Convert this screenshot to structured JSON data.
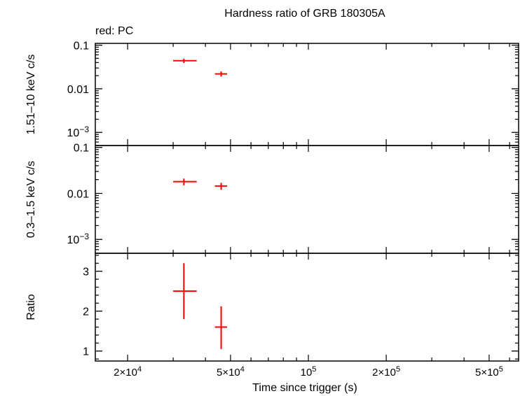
{
  "chart_data": {
    "type": "scatter",
    "title": "Hardness ratio of GRB 180305A",
    "legend_note": "red: PC",
    "xlabel": "Time since trigger (s)",
    "x_scale": "log",
    "xlim": [
      15000,
      650000
    ],
    "x_ticks": [
      {
        "value": 20000,
        "mant": "2×10",
        "exp": "4"
      },
      {
        "value": 50000,
        "mant": "5×10",
        "exp": "4"
      },
      {
        "value": 100000,
        "mant": "10",
        "exp": "5"
      },
      {
        "value": 200000,
        "mant": "2×10",
        "exp": "5"
      },
      {
        "value": 500000,
        "mant": "5×10",
        "exp": "5"
      }
    ],
    "series_color": "#ff0000",
    "panels": [
      {
        "id": "hard",
        "ylabel": "1.51–10 keV c/s",
        "y_scale": "log",
        "ylim": [
          0.0005,
          0.11
        ],
        "y_ticks": [
          {
            "value": 0.1,
            "label": "0.1"
          },
          {
            "value": 0.01,
            "label": "0.01"
          },
          {
            "value": 0.001,
            "mant": "10",
            "exp": "−3"
          }
        ],
        "points": [
          {
            "x": 33000,
            "xlo": 30000,
            "xhi": 37000,
            "y": 0.044,
            "ylo": 0.039,
            "yhi": 0.049
          },
          {
            "x": 46000,
            "xlo": 43500,
            "xhi": 48500,
            "y": 0.022,
            "ylo": 0.019,
            "yhi": 0.025
          }
        ]
      },
      {
        "id": "soft",
        "ylabel": "0.3–1.5 keV c/s",
        "y_scale": "log",
        "ylim": [
          0.0005,
          0.11
        ],
        "y_ticks": [
          {
            "value": 0.1,
            "label": "0.1"
          },
          {
            "value": 0.01,
            "label": "0.01"
          },
          {
            "value": 0.001,
            "mant": "10",
            "exp": "−3"
          }
        ],
        "points": [
          {
            "x": 33000,
            "xlo": 30000,
            "xhi": 37000,
            "y": 0.018,
            "ylo": 0.015,
            "yhi": 0.021
          },
          {
            "x": 46000,
            "xlo": 43500,
            "xhi": 48500,
            "y": 0.0145,
            "ylo": 0.012,
            "yhi": 0.017
          }
        ]
      },
      {
        "id": "ratio",
        "ylabel": "Ratio",
        "y_scale": "linear",
        "ylim": [
          0.75,
          3.45
        ],
        "y_ticks": [
          {
            "value": 1,
            "label": "1"
          },
          {
            "value": 2,
            "label": "2"
          },
          {
            "value": 3,
            "label": "3"
          }
        ],
        "points": [
          {
            "x": 33000,
            "xlo": 30000,
            "xhi": 37000,
            "y": 2.5,
            "ylo": 1.8,
            "yhi": 3.2
          },
          {
            "x": 46000,
            "xlo": 43500,
            "xhi": 48500,
            "y": 1.6,
            "ylo": 1.05,
            "yhi": 2.12
          }
        ]
      }
    ]
  }
}
